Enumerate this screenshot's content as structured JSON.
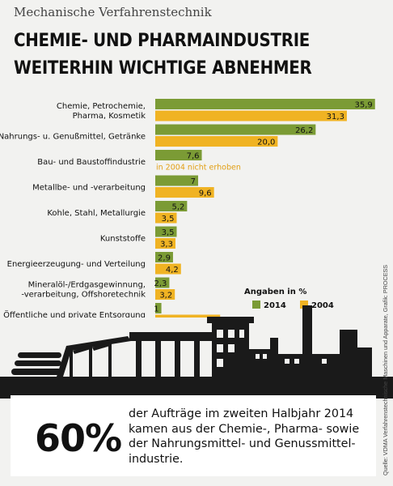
{
  "kicker": "Mechanische Verfahrenstechnik",
  "headline": {
    "line1": "CHEMIE- UND PHARMAINDUSTRIE",
    "line2": "WEITERHIN WICHTIGE ABNEHMER"
  },
  "colors": {
    "series_2014": "#7b9b35",
    "series_2004": "#f0b323",
    "note_text": "#e29f14",
    "silhouette": "#1a1a1a",
    "background": "#f2f2f0"
  },
  "chart_data": {
    "type": "bar",
    "orientation": "horizontal",
    "categories": [
      [
        "Chemie, Petrochemie,",
        "Pharma, Kosmetik"
      ],
      [
        "Nahrungs- u. Genußmittel, Getränke"
      ],
      [
        "Bau- und Baustoffindustrie"
      ],
      [
        "Metallbe- und -verarbeitung"
      ],
      [
        "Kohle, Stahl, Metallurgie"
      ],
      [
        "Kunststoffe"
      ],
      [
        "Energieerzeugung- und Verteilung"
      ],
      [
        "Mineralöl-/Erdgasgewinnung,",
        "-verarbeitung, Offshoretechnik"
      ],
      [
        "Öffentliche und private Entsorgung"
      ]
    ],
    "series": [
      {
        "name": "2014",
        "values": [
          35.9,
          26.2,
          7.6,
          7,
          5.2,
          3.5,
          2.9,
          2.3,
          1
        ],
        "labels": [
          "35,9",
          "26,2",
          "7,6",
          "7",
          "5,2",
          "3,5",
          "2,9",
          "2,3",
          "1"
        ]
      },
      {
        "name": "2004",
        "values": [
          31.3,
          20.0,
          null,
          9.6,
          3.5,
          3.3,
          4.2,
          3.2,
          10.6
        ],
        "labels": [
          "31,3",
          "20,0",
          "",
          "9,6",
          "3,5",
          "3,3",
          "4,2",
          "3,2",
          "10,6"
        ]
      }
    ],
    "missing_note": "in 2004 nicht erhoben",
    "legend_title": "Angaben in %",
    "legend_placement": "bottom-right",
    "xlim": [
      0,
      36
    ]
  },
  "source": "Quelle: VDMA Verfahrenstechnische Maschinen und Apparate, Grafik: PROCESS",
  "stat": {
    "value": "60%",
    "text": "der Aufträge im zweiten Halbjahr 2014 kamen aus der Chemie-, Pharma- sowie der Nahrungsmittel- und Genussmittel-industrie."
  }
}
